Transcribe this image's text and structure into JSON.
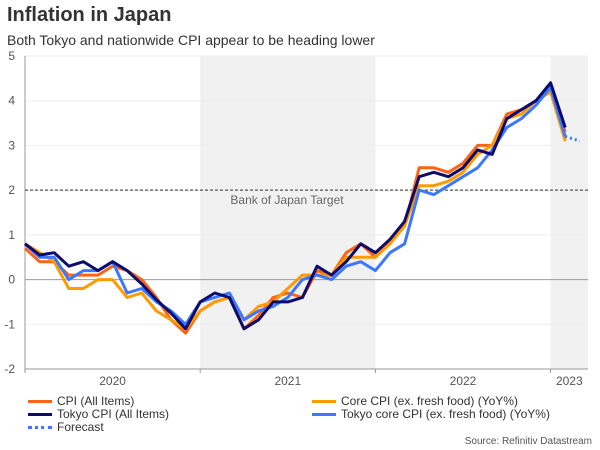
{
  "header": {
    "title": "Inflation in Japan",
    "subtitle": "Both Tokyo and nationwide CPI appear to be heading lower"
  },
  "source": "Source: Refinitiv Datastream",
  "chart_data": {
    "type": "line",
    "title": "Inflation in Japan",
    "subtitle": "Both Tokyo and nationwide CPI appear to be heading lower",
    "x_start": "2020-01",
    "x_frequency": "monthly",
    "x_tick_labels": [
      "2020",
      "2021",
      "2022",
      "2023"
    ],
    "ylim": [
      -2,
      5
    ],
    "y_ticks": [
      -2,
      -1,
      0,
      1,
      2,
      3,
      4,
      5
    ],
    "grid": true,
    "shaded_years": [
      "2021",
      "2023"
    ],
    "reference_line": {
      "value": 2,
      "label": "Bank of Japan Target",
      "style": "dashed"
    },
    "legend_position": "bottom",
    "series": [
      {
        "name": "CPI (All Items)",
        "color": "#ff6414",
        "style": "solid",
        "values": [
          0.7,
          0.4,
          0.4,
          0.1,
          0.1,
          0.1,
          0.3,
          0.2,
          0.0,
          -0.4,
          -0.9,
          -1.2,
          -0.7,
          -0.5,
          -0.4,
          -1.1,
          -0.8,
          -0.4,
          -0.3,
          -0.4,
          0.2,
          0.1,
          0.6,
          0.8,
          0.5,
          0.9,
          1.2,
          2.5,
          2.5,
          2.4,
          2.6,
          3.0,
          3.0,
          3.7,
          3.8,
          4.0,
          4.3,
          3.3
        ]
      },
      {
        "name": "Core CPI (ex. fresh food) (YoY%)",
        "color": "#ff9a00",
        "style": "solid",
        "values": [
          0.8,
          0.6,
          0.4,
          -0.2,
          -0.2,
          0.0,
          0.0,
          -0.4,
          -0.3,
          -0.7,
          -0.9,
          -1.1,
          -0.7,
          -0.5,
          -0.4,
          -0.9,
          -0.6,
          -0.5,
          -0.2,
          0.1,
          0.1,
          0.1,
          0.5,
          0.5,
          0.5,
          0.8,
          1.2,
          2.1,
          2.1,
          2.2,
          2.4,
          2.8,
          3.0,
          3.6,
          3.7,
          4.0,
          4.2,
          3.1
        ]
      },
      {
        "name": "Tokyo CPI (All Items)",
        "color": "#0c0c6e",
        "style": "solid",
        "values": [
          0.8,
          0.55,
          0.6,
          0.3,
          0.4,
          0.2,
          0.4,
          0.2,
          -0.1,
          -0.45,
          -0.75,
          -1.1,
          -0.5,
          -0.3,
          -0.4,
          -1.1,
          -0.9,
          -0.5,
          -0.5,
          -0.4,
          0.3,
          0.1,
          0.4,
          0.8,
          0.6,
          0.9,
          1.3,
          2.3,
          2.4,
          2.3,
          2.5,
          2.9,
          2.8,
          3.6,
          3.8,
          4.0,
          4.4,
          3.4
        ]
      },
      {
        "name": "Tokyo core CPI (ex. fresh food) (YoY%)",
        "color": "#3c78ff",
        "style": "solid",
        "values": [
          0.8,
          0.5,
          0.5,
          0.0,
          0.2,
          0.2,
          0.4,
          -0.3,
          -0.2,
          -0.5,
          -0.7,
          -1.0,
          -0.5,
          -0.4,
          -0.3,
          -0.9,
          -0.7,
          -0.6,
          -0.4,
          0.0,
          0.1,
          0.0,
          0.3,
          0.4,
          0.2,
          0.6,
          0.8,
          2.0,
          1.9,
          2.1,
          2.3,
          2.5,
          2.9,
          3.4,
          3.6,
          3.9,
          4.3,
          3.2
        ]
      },
      {
        "name": "Forecast",
        "color": "#3c78ff",
        "style": "dotted",
        "x": [
          "2023-02",
          "2023-03"
        ],
        "values": [
          3.2,
          3.1
        ]
      }
    ]
  }
}
